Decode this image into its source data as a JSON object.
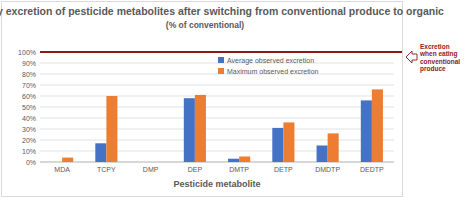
{
  "chart_data": {
    "type": "bar",
    "title": "Urinary excretion of pesticide metabolites after switching from conventional produce to organic",
    "subtitle": "(% of conventional)",
    "x_label": "Pesticide metabolite",
    "categories": [
      "MDA",
      "TCPY",
      "DMP",
      "DEP",
      "DMTP",
      "DETP",
      "DMDTP",
      "DEDTP"
    ],
    "series": [
      {
        "name": "Average observed excretion",
        "color": "#4472c4",
        "values": [
          0,
          17,
          0,
          58,
          3,
          31,
          15,
          56
        ]
      },
      {
        "name": "Maximum observed excretion",
        "color": "#ed7d31",
        "values": [
          4,
          60,
          0,
          61,
          5,
          36,
          26,
          66
        ]
      }
    ],
    "ylim": [
      0,
      100
    ],
    "yticks": [
      {
        "value": 0,
        "label": "0%"
      },
      {
        "value": 10,
        "label": "10%"
      },
      {
        "value": 20,
        "label": "20%"
      },
      {
        "value": 30,
        "label": "30%"
      },
      {
        "value": 40,
        "label": "40%"
      },
      {
        "value": 50,
        "label": "50%"
      },
      {
        "value": 60,
        "label": "60%"
      },
      {
        "value": 70,
        "label": "70%"
      },
      {
        "value": 80,
        "label": "80%"
      },
      {
        "value": 90,
        "label": "90%"
      },
      {
        "value": 100,
        "label": "100%"
      }
    ],
    "grid": true,
    "legend": "top",
    "annotations": [
      {
        "text": "Excretion when eating conventional produce",
        "value": 100,
        "color": "#8b1a1a"
      }
    ]
  }
}
